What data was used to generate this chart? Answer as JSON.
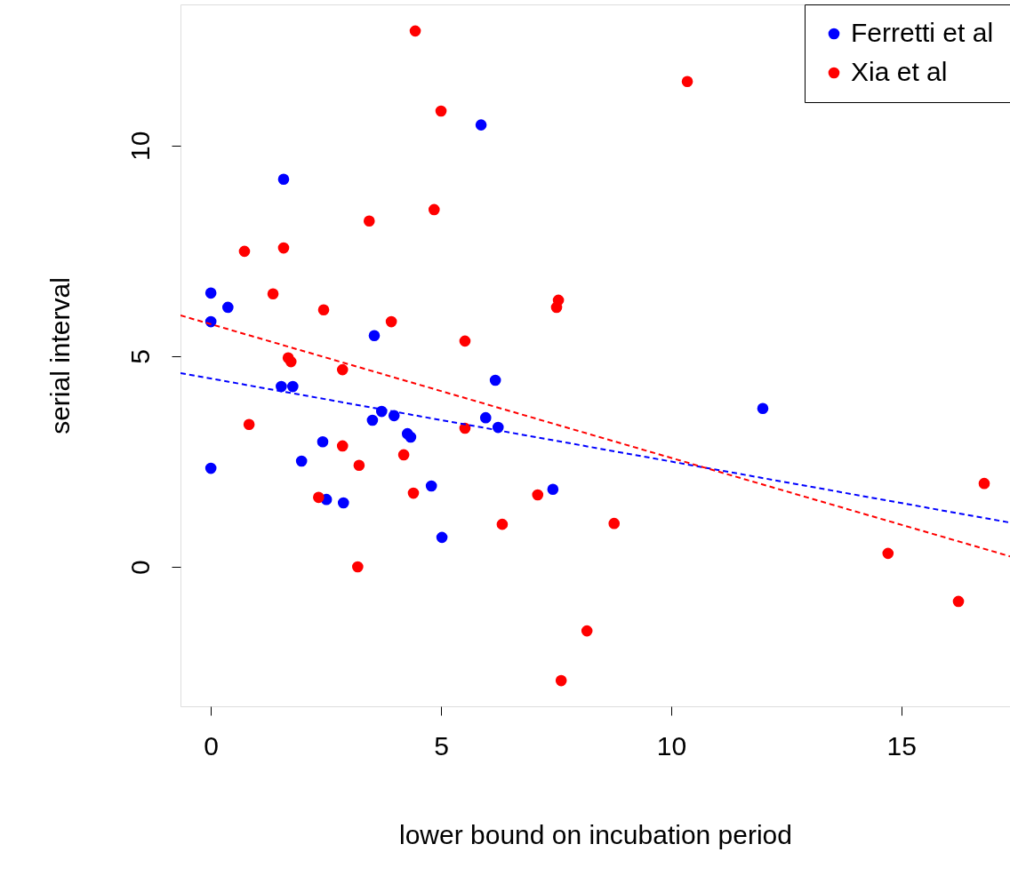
{
  "chart_data": {
    "type": "scatter",
    "xlabel": "lower bound on incubation period",
    "ylabel": "serial interval",
    "xlim": [
      -0.66,
      17.36
    ],
    "ylim": [
      -3.31,
      13.35
    ],
    "xticks": [
      0,
      5,
      10,
      15
    ],
    "yticks": [
      0,
      5,
      10
    ],
    "grid": false,
    "legend": "top right",
    "marker": "circle",
    "series": [
      {
        "name": "Ferretti et al",
        "color": "#0000ff",
        "x": [
          0,
          0,
          0.37,
          0,
          1.58,
          1.53,
          1.78,
          1.97,
          2.43,
          2.51,
          2.88,
          3.55,
          3.51,
          3.71,
          3.98,
          4.27,
          4.34,
          4.79,
          5.02,
          5.87,
          5.97,
          6.18,
          6.24,
          7.43,
          11.99
        ],
        "values": [
          6.5,
          5.82,
          6.16,
          2.34,
          9.2,
          4.28,
          4.28,
          2.51,
          2.97,
          1.6,
          1.52,
          5.49,
          3.48,
          3.69,
          3.59,
          3.16,
          3.08,
          1.92,
          0.7,
          10.49,
          3.54,
          4.43,
          3.31,
          1.84,
          3.76
        ]
      },
      {
        "name": "Xia et al",
        "color": "#ff0000",
        "x": [
          4.44,
          10.35,
          5.0,
          4.85,
          3.44,
          0.73,
          1.58,
          1.35,
          2.45,
          7.55,
          7.51,
          3.92,
          5.52,
          1.68,
          1.74,
          2.86,
          0.83,
          5.52,
          2.86,
          4.19,
          3.22,
          2.34,
          4.4,
          7.1,
          6.33,
          8.76,
          3.19,
          14.71,
          16.8,
          16.24,
          8.17,
          7.61
        ],
        "values": [
          12.72,
          11.52,
          10.82,
          8.48,
          8.21,
          7.49,
          7.57,
          6.48,
          6.1,
          6.33,
          6.16,
          5.82,
          5.36,
          4.96,
          4.87,
          4.68,
          3.38,
          3.29,
          2.87,
          2.66,
          2.41,
          1.65,
          1.75,
          1.71,
          1.01,
          1.03,
          0.0,
          0.32,
          1.98,
          -0.82,
          -1.52,
          -2.7
        ]
      },
      {
        "type": "line",
        "color": "#0000ff",
        "line_style": "dashed",
        "marker": "none",
        "x": [
          -0.66,
          17.36
        ],
        "values": [
          4.6,
          1.05
        ]
      },
      {
        "type": "line",
        "color": "#ff0000",
        "line_style": "dashed",
        "marker": "none",
        "x": [
          -0.66,
          17.36
        ],
        "values": [
          5.97,
          0.25
        ]
      }
    ]
  }
}
